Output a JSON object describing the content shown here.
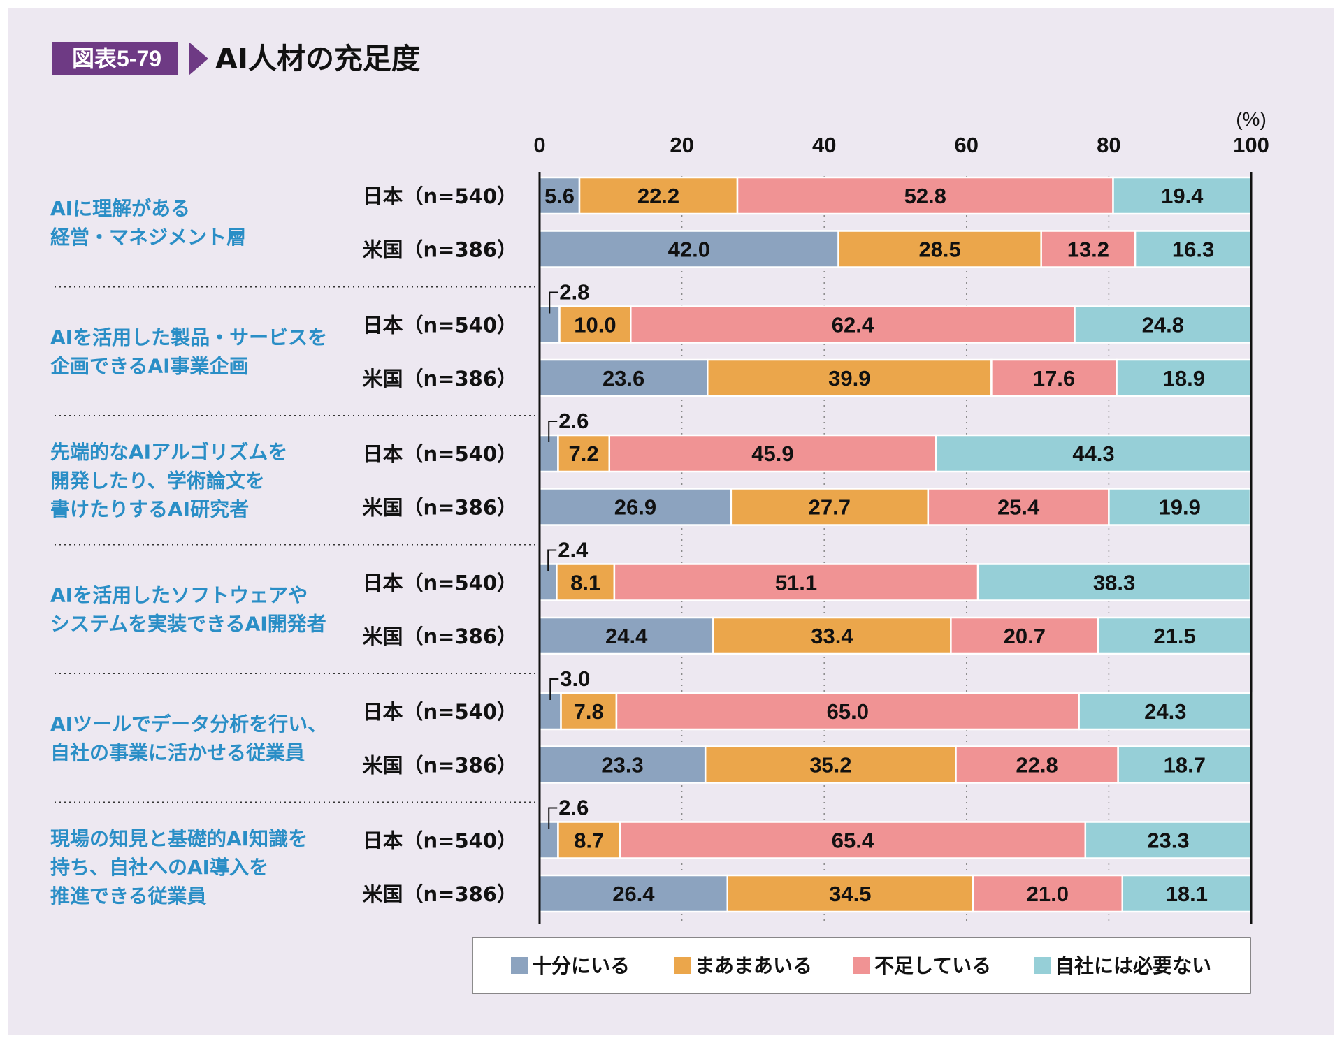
{
  "header": {
    "badge": "図表5-79",
    "title": "AI人材の充足度"
  },
  "colors": {
    "series": [
      "#8ca3bf",
      "#eba64b",
      "#f09394",
      "#96cfd7"
    ],
    "group_label": "#2a8ec6",
    "text": "#111111",
    "background": "#ede8f1"
  },
  "chart_data": {
    "type": "bar",
    "orientation": "horizontal",
    "stacked": true,
    "title": "AI人材の充足度",
    "unit_label": "(%)",
    "xlim": [
      0,
      100
    ],
    "ticks": [
      "0",
      "20",
      "40",
      "60",
      "80",
      "100"
    ],
    "series": [
      "十分にいる",
      "まあまあいる",
      "不足している",
      "自社には必要ない"
    ],
    "legend_position": "bottom",
    "groups": [
      {
        "label_lines": [
          "AIに理解がある",
          "経営・マネジメント層"
        ],
        "rows": [
          {
            "label": "日本（n=540）",
            "values": [
              5.6,
              22.2,
              52.8,
              19.4
            ],
            "labels": [
              "5.6",
              "22.2",
              "52.8",
              "19.4"
            ]
          },
          {
            "label": "米国（n=386）",
            "values": [
              42.0,
              28.5,
              13.2,
              16.3
            ],
            "labels": [
              "42.0",
              "28.5",
              "13.2",
              "16.3"
            ]
          }
        ]
      },
      {
        "label_lines": [
          "AIを活用した製品・サービスを",
          "企画できるAI事業企画"
        ],
        "rows": [
          {
            "label": "日本（n=540）",
            "values": [
              2.8,
              10.0,
              62.4,
              24.8
            ],
            "labels": [
              "2.8",
              "10.0",
              "62.4",
              "24.8"
            ]
          },
          {
            "label": "米国（n=386）",
            "values": [
              23.6,
              39.9,
              17.6,
              18.9
            ],
            "labels": [
              "23.6",
              "39.9",
              "17.6",
              "18.9"
            ]
          }
        ]
      },
      {
        "label_lines": [
          "先端的なAIアルゴリズムを",
          "開発したり、学術論文を",
          "書けたりするAI研究者"
        ],
        "rows": [
          {
            "label": "日本（n=540）",
            "values": [
              2.6,
              7.2,
              45.9,
              44.3
            ],
            "labels": [
              "2.6",
              "7.2",
              "45.9",
              "44.3"
            ]
          },
          {
            "label": "米国（n=386）",
            "values": [
              26.9,
              27.7,
              25.4,
              19.9
            ],
            "labels": [
              "26.9",
              "27.7",
              "25.4",
              "19.9"
            ]
          }
        ]
      },
      {
        "label_lines": [
          "AIを活用したソフトウェアや",
          "システムを実装できるAI開発者"
        ],
        "rows": [
          {
            "label": "日本（n=540）",
            "values": [
              2.4,
              8.1,
              51.1,
              38.3
            ],
            "labels": [
              "2.4",
              "8.1",
              "51.1",
              "38.3"
            ]
          },
          {
            "label": "米国（n=386）",
            "values": [
              24.4,
              33.4,
              20.7,
              21.5
            ],
            "labels": [
              "24.4",
              "33.4",
              "20.7",
              "21.5"
            ]
          }
        ]
      },
      {
        "label_lines": [
          "AIツールでデータ分析を行い、",
          "自社の事業に活かせる従業員"
        ],
        "rows": [
          {
            "label": "日本（n=540）",
            "values": [
              3.0,
              7.8,
              65.0,
              24.3
            ],
            "labels": [
              "3.0",
              "7.8",
              "65.0",
              "24.3"
            ]
          },
          {
            "label": "米国（n=386）",
            "values": [
              23.3,
              35.2,
              22.8,
              18.7
            ],
            "labels": [
              "23.3",
              "35.2",
              "22.8",
              "18.7"
            ]
          }
        ]
      },
      {
        "label_lines": [
          "現場の知見と基礎的AI知識を",
          "持ち、自社へのAI導入を",
          "推進できる従業員"
        ],
        "rows": [
          {
            "label": "日本（n=540）",
            "values": [
              2.6,
              8.7,
              65.4,
              23.3
            ],
            "labels": [
              "2.6",
              "8.7",
              "65.4",
              "23.3"
            ]
          },
          {
            "label": "米国（n=386）",
            "values": [
              26.4,
              34.5,
              21.0,
              18.1
            ],
            "labels": [
              "26.4",
              "34.5",
              "21.0",
              "18.1"
            ]
          }
        ]
      }
    ]
  }
}
